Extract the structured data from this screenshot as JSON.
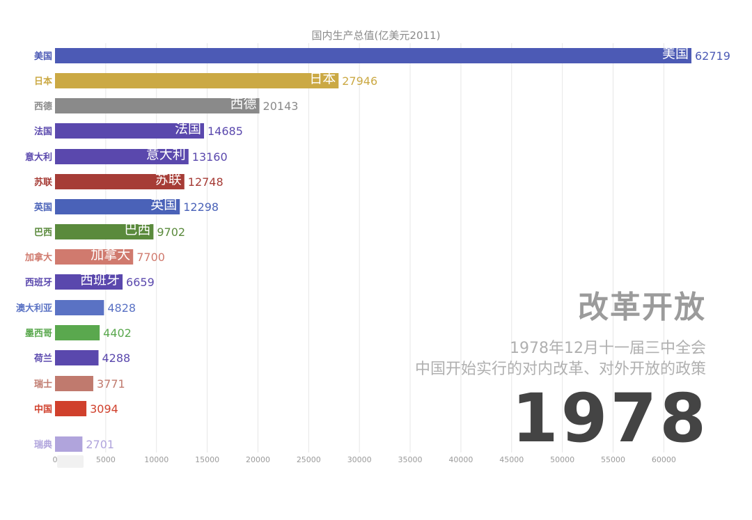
{
  "chart_data": {
    "type": "bar",
    "orientation": "horizontal",
    "title": "国内生产总值(亿美元2011)",
    "categories": [
      "美国",
      "日本",
      "西德",
      "法国",
      "意大利",
      "苏联",
      "英国",
      "巴西",
      "加拿大",
      "西班牙",
      "澳大利亚",
      "墨西哥",
      "荷兰",
      "瑞士",
      "中国",
      "瑞典"
    ],
    "values": [
      62719,
      27946,
      20143,
      14685,
      13160,
      12748,
      12298,
      9702,
      7700,
      6659,
      4828,
      4402,
      4288,
      3771,
      3094,
      2701
    ],
    "colors": [
      "#4c5ab5",
      "#cba944",
      "#8a8a8a",
      "#5a48ad",
      "#5a48ad",
      "#a63c36",
      "#4a62b8",
      "#5a8a3c",
      "#d07a6e",
      "#5a48ad",
      "#5a72c4",
      "#5aa84e",
      "#5a48ad",
      "#c07a6e",
      "#d0402c",
      "#b0a4dc"
    ],
    "inner_labels": [
      "美国",
      "日本",
      "西德",
      "法国",
      "意大利",
      "苏联",
      "英国",
      "巴西",
      "加拿大",
      "西班牙"
    ],
    "xticks": [
      0,
      5000,
      10000,
      15000,
      20000,
      25000,
      30000,
      35000,
      40000,
      45000,
      50000,
      55000,
      60000
    ],
    "xlim": [
      0,
      64000
    ],
    "grid": true
  },
  "annotation": {
    "event_title": "改革开放",
    "line1": "1978年12月十一届三中全会",
    "line2": "中国开始实行的对内改革、对外开放的政策",
    "year": "1978"
  }
}
